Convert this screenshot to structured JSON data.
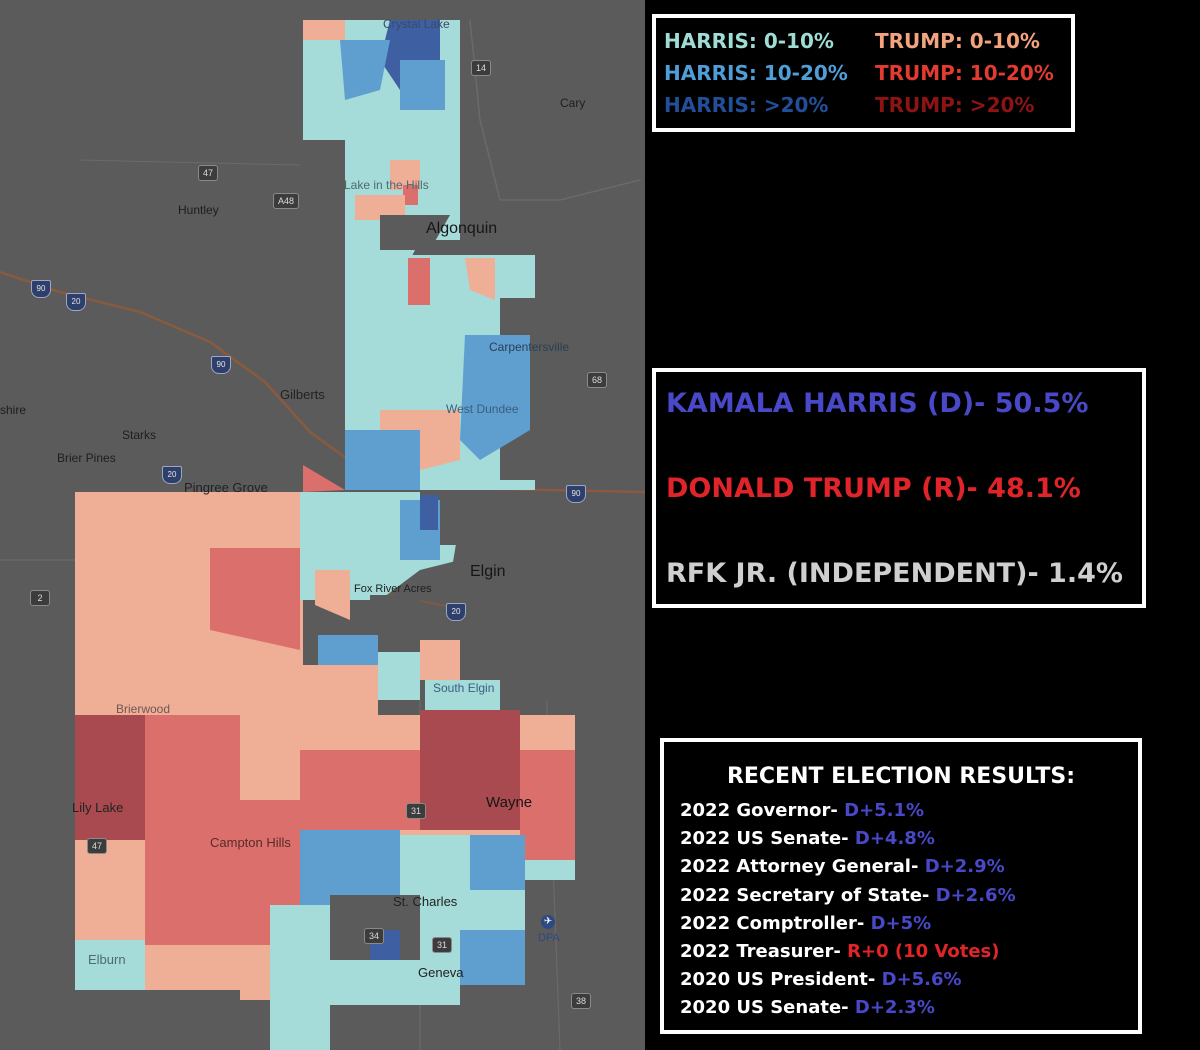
{
  "colors": {
    "harris_0_10": "#a5dbd8",
    "harris_10_20": "#5f9fcf",
    "harris_gt20": "#3f5fa3",
    "trump_0_10": "#efae96",
    "trump_10_20": "#db6f6c",
    "trump_gt20": "#a94a50",
    "dem_text": "#4848c8",
    "rep_text": "#e0242a",
    "ind_text": "#cfcfcf",
    "map_bg": "#5b5b5b"
  },
  "legend": [
    {
      "label": "HARRIS: 0-10%",
      "color": "#9fdcd6"
    },
    {
      "label": "HARRIS: 10-20%",
      "color": "#4f9ed8"
    },
    {
      "label": "HARRIS: >20%",
      "color": "#214f99"
    },
    {
      "label": "TRUMP: 0-10%",
      "color": "#f3a47f"
    },
    {
      "label": "TRUMP: 10-20%",
      "color": "#e23b2f"
    },
    {
      "label": "TRUMP: >20%",
      "color": "#8e1414"
    }
  ],
  "candidates": [
    {
      "name": "KAMALA HARRIS (D)",
      "pct": "- 50.5%",
      "color": "#4848c8"
    },
    {
      "name": "DONALD TRUMP (R)",
      "pct": "- 48.1%",
      "color": "#e0242a"
    },
    {
      "name": "RFK JR. (INDEPENDENT)",
      "pct": "- 1.4%",
      "color": "#cfcfcf"
    }
  ],
  "recent_results": {
    "title": "RECENT ELECTION RESULTS:",
    "rows": [
      {
        "race": "2022 Governor- ",
        "margin": "D+5.1%",
        "party": "D"
      },
      {
        "race": "2022 US Senate- ",
        "margin": "D+4.8%",
        "party": "D"
      },
      {
        "race": "2022 Attorney General- ",
        "margin": "D+2.9%",
        "party": "D"
      },
      {
        "race": "2022 Secretary of State- ",
        "margin": "D+2.6%",
        "party": "D"
      },
      {
        "race": "2022 Comptroller- ",
        "margin": "D+5%",
        "party": "D"
      },
      {
        "race": "2022 Treasurer- ",
        "margin": "R+0 (10 Votes)",
        "party": "R"
      },
      {
        "race": "2020 US President- ",
        "margin": "D+5.6%",
        "party": "D"
      },
      {
        "race": "2020 US Senate- ",
        "margin": "D+2.3%",
        "party": "D"
      }
    ]
  },
  "map_labels": {
    "crystal_lake": "Crystal Lake",
    "cary": "Cary",
    "lake_in_the_hills": "Lake in the Hills",
    "huntley": "Huntley",
    "algonquin": "Algonquin",
    "carpentersville": "Carpentersville",
    "gilberts": "Gilberts",
    "west_dundee": "West Dundee",
    "hampshire": "shire",
    "starks": "Starks",
    "brier_pines": "Brier Pines",
    "pingree_grove": "Pingree Grove",
    "elgin": "Elgin",
    "fox_river_acres": "Fox River Acres",
    "south_elgin": "South Elgin",
    "brierwood": "Brierwood",
    "lily_lake": "Lily Lake",
    "campton_hills": "Campton Hills",
    "wayne": "Wayne",
    "st_charles": "St. Charles",
    "elburn": "Elburn",
    "geneva": "Geneva",
    "dpa": "DPA"
  },
  "road_shields": [
    "14",
    "47",
    "A48",
    "90",
    "20",
    "90",
    "68",
    "20",
    "90",
    "2",
    "20",
    "31",
    "47",
    "34",
    "31",
    "38"
  ]
}
